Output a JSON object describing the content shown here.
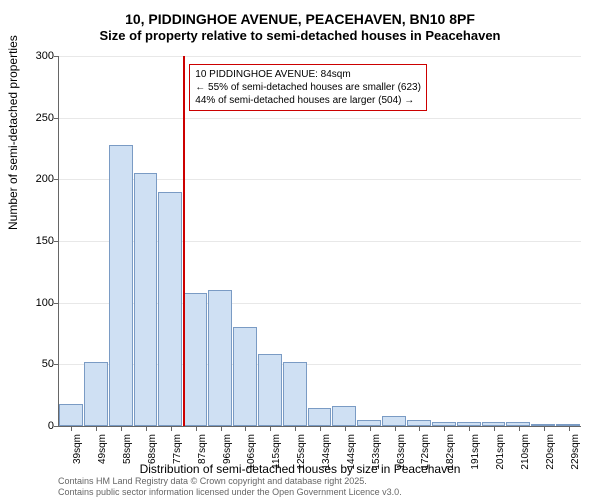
{
  "title": "10, PIDDINGHOE AVENUE, PEACEHAVEN, BN10 8PF",
  "subtitle": "Size of property relative to semi-detached houses in Peacehaven",
  "y_axis_label": "Number of semi-detached properties",
  "x_axis_label": "Distribution of semi-detached houses by size in Peacehaven",
  "footer_line1": "Contains HM Land Registry data © Crown copyright and database right 2025.",
  "footer_line2": "Contains public sector information licensed under the Open Government Licence v3.0.",
  "chart": {
    "type": "histogram",
    "ylim": [
      0,
      300
    ],
    "ytick_step": 50,
    "background_color": "#ffffff",
    "grid_color": "#e8e8e8",
    "axis_color": "#666666",
    "bar_fill": "#cfe0f3",
    "bar_border": "#7a9bc4",
    "marker_color": "#cc0000",
    "annotation_border": "#cc0000",
    "annotation_bg": "#ffffff",
    "bar_width_ratio": 1.0,
    "x_labels": [
      "39sqm",
      "49sqm",
      "58sqm",
      "68sqm",
      "77sqm",
      "87sqm",
      "96sqm",
      "106sqm",
      "115sqm",
      "125sqm",
      "134sqm",
      "144sqm",
      "153sqm",
      "163sqm",
      "172sqm",
      "182sqm",
      "191sqm",
      "201sqm",
      "210sqm",
      "220sqm",
      "229sqm"
    ],
    "values": [
      18,
      52,
      228,
      205,
      190,
      108,
      110,
      80,
      58,
      52,
      15,
      16,
      5,
      8,
      5,
      3,
      3,
      3,
      3,
      2,
      2
    ],
    "marker_position": 5,
    "annotation": {
      "line1": "10 PIDDINGHOE AVENUE: 84sqm",
      "line2": "← 55% of semi-detached houses are smaller (623)",
      "line3": "44% of semi-detached houses are larger (504) →"
    },
    "title_fontsize": 14,
    "label_fontsize": 12,
    "tick_fontsize": 11,
    "annotation_fontsize": 10
  }
}
